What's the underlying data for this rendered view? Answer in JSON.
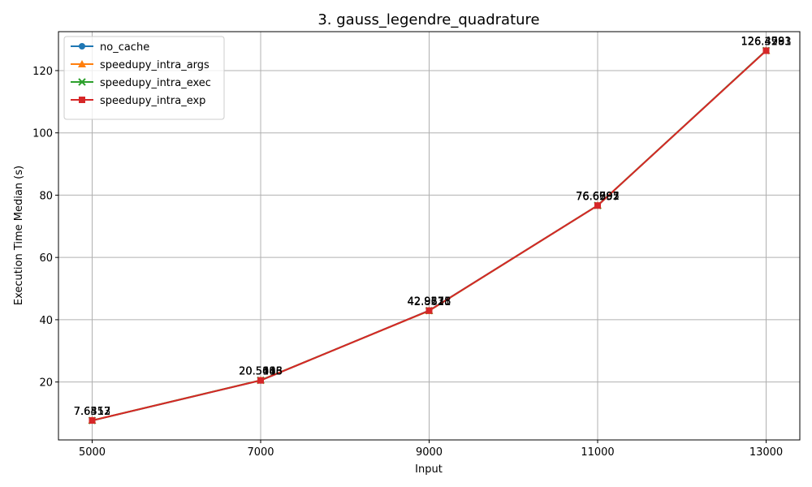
{
  "chart_data": {
    "type": "line",
    "title": "3. gauss_legendre_quadrature",
    "xlabel": "Input",
    "ylabel": "Execution Time Median (s)",
    "x": [
      5000,
      7000,
      9000,
      11000,
      13000
    ],
    "xticks": [
      "5000",
      "7000",
      "9000",
      "11000",
      "13000"
    ],
    "xlim": [
      4600,
      13400
    ],
    "ylim": [
      1.4,
      132.5
    ],
    "yticks": [
      20,
      40,
      60,
      80,
      100,
      120
    ],
    "grid": true,
    "legend_position": "top-left",
    "series": [
      {
        "name": "no_cache",
        "marker": "circle",
        "color": "#1f77b4",
        "values": [
          7.6317,
          20.5046,
          42.9578,
          76.6557,
          126.4591
        ],
        "labels": [
          "7.6317",
          "20.5046",
          "42.9578",
          "76.6557",
          "126.4591"
        ]
      },
      {
        "name": "speedupy_intra_args",
        "marker": "triangle",
        "color": "#ff7f0e",
        "values": [
          7.6512,
          20.5413,
          42.8611,
          76.6792,
          126.3961
        ],
        "labels": [
          "7.6512",
          "20.5413",
          "42.8611",
          "76.6792",
          "126.3961"
        ]
      },
      {
        "name": "speedupy_intra_exec",
        "marker": "x",
        "color": "#2ca02c",
        "values": [
          7.6352,
          20.5608,
          42.9135,
          76.6901,
          126.4283
        ],
        "labels": [
          "7.6352",
          "20.5608",
          "42.9135",
          "76.6901",
          "126.4283"
        ]
      },
      {
        "name": "speedupy_intra_exp",
        "marker": "square",
        "color": "#d62728",
        "values": [
          7.6413,
          20.5183,
          42.9228,
          76.6695,
          126.3793
        ],
        "labels": [
          "7.6413",
          "20.5183",
          "42.9228",
          "76.6695",
          "126.3793"
        ]
      }
    ]
  }
}
